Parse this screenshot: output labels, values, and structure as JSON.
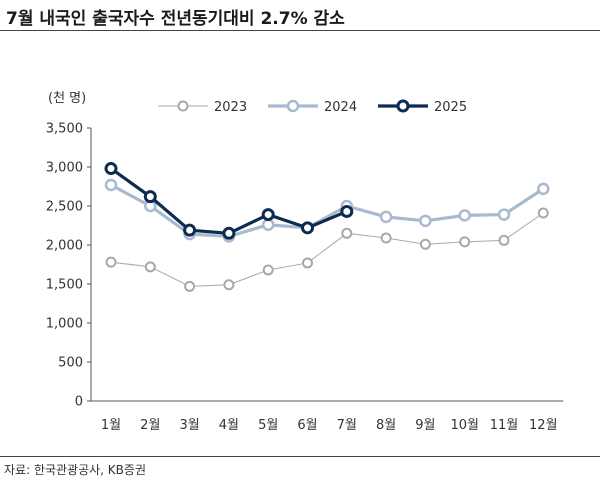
{
  "title": "7월 내국인 출국자수 전년동기대비 2.7% 감소",
  "source": "자료: 한국관광공사, KB증권",
  "chart_data": {
    "type": "line",
    "unit_label": "(천 명)",
    "categories": [
      "1월",
      "2월",
      "3월",
      "4월",
      "5월",
      "6월",
      "7월",
      "8월",
      "9월",
      "10월",
      "11월",
      "12월"
    ],
    "ylim": [
      0,
      3500
    ],
    "yticks": [
      0,
      500,
      1000,
      1500,
      2000,
      2500,
      3000,
      3500
    ],
    "ytick_labels": [
      "0",
      "500",
      "1,000",
      "1,500",
      "2,000",
      "2,500",
      "3,000",
      "3,500"
    ],
    "grid": false,
    "legend_position": "top",
    "series": [
      {
        "name": "2023",
        "color": "#a8a8a8",
        "style": "thin",
        "values": [
          1780,
          1720,
          1470,
          1490,
          1680,
          1770,
          2150,
          2090,
          2010,
          2040,
          2060,
          2410
        ]
      },
      {
        "name": "2024",
        "color": "#a9b9cf",
        "style": "medium",
        "values": [
          2770,
          2500,
          2140,
          2110,
          2260,
          2220,
          2500,
          2360,
          2310,
          2380,
          2390,
          2720
        ]
      },
      {
        "name": "2025",
        "color": "#0d2a4f",
        "style": "thick",
        "values": [
          2980,
          2620,
          2190,
          2150,
          2390,
          2220,
          2430,
          null,
          null,
          null,
          null,
          null
        ]
      }
    ]
  }
}
